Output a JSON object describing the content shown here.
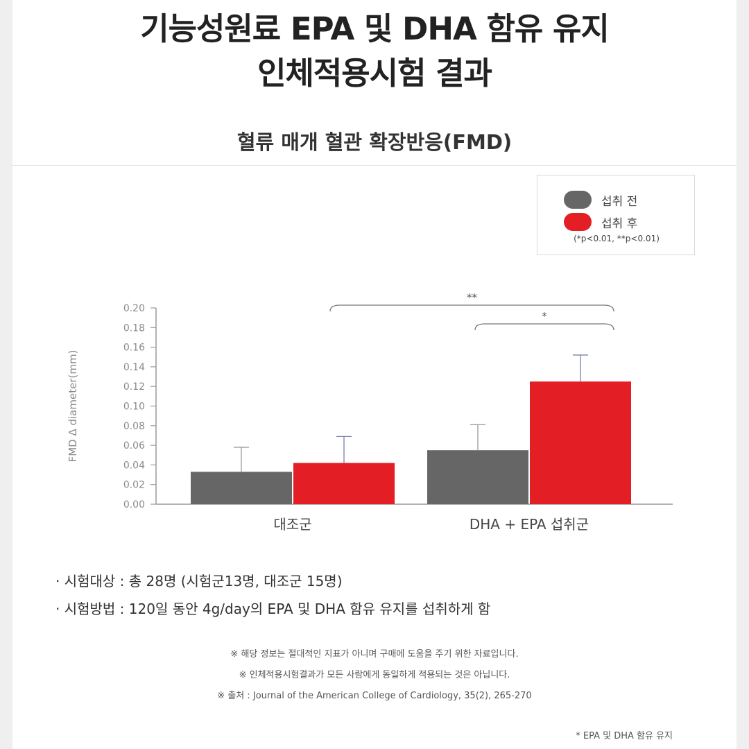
{
  "header": {
    "title_line1": "기능성원료 EPA 및 DHA 함유 유지",
    "title_line2": "인체적용시험 결과"
  },
  "chart_data": {
    "type": "bar",
    "title": "혈류 매개 혈관 확장반응(FMD)",
    "ylabel": "FMD Δ diameter(mm)",
    "ylim": [
      0,
      0.2
    ],
    "yticks": [
      "0.00",
      "0.02",
      "0.04",
      "0.06",
      "0.08",
      "0.10",
      "0.12",
      "0.14",
      "0.16",
      "0.18",
      "0.20"
    ],
    "categories": [
      "대조군",
      "DHA + EPA 섭취군"
    ],
    "series": [
      {
        "name": "섭취 전",
        "color": "#666666",
        "values": [
          0.033,
          0.055
        ],
        "errors": [
          0.025,
          0.026
        ]
      },
      {
        "name": "섭취 후",
        "color": "#e31e24",
        "values": [
          0.042,
          0.125
        ],
        "errors": [
          0.027,
          0.027
        ]
      }
    ],
    "significance": [
      {
        "label": "**"
      },
      {
        "label": "*"
      }
    ],
    "legend": {
      "position": "top-right",
      "note": "(*p<0.01, **p<0.01)"
    },
    "grid": false
  },
  "info": {
    "subjects": "· 시험대상 : 총 28명 (시험군13명, 대조군 15명)",
    "method": "· 시험방법 : 120일 동안 4g/day의 EPA 및 DHA 함유 유지를 섭취하게 함"
  },
  "notes": [
    "※ 해당 정보는 절대적인 지표가 아니며 구매에 도움을 주기 위한 자료입니다.",
    "※ 인체적용시험결과가 모든 사람에게 동일하게 적용되는 것은 아닙니다.",
    "※ 출처 : Journal of the American College of Cardiology, 35(2), 265-270"
  ],
  "footnote": "* EPA 및 DHA 함유 유지"
}
